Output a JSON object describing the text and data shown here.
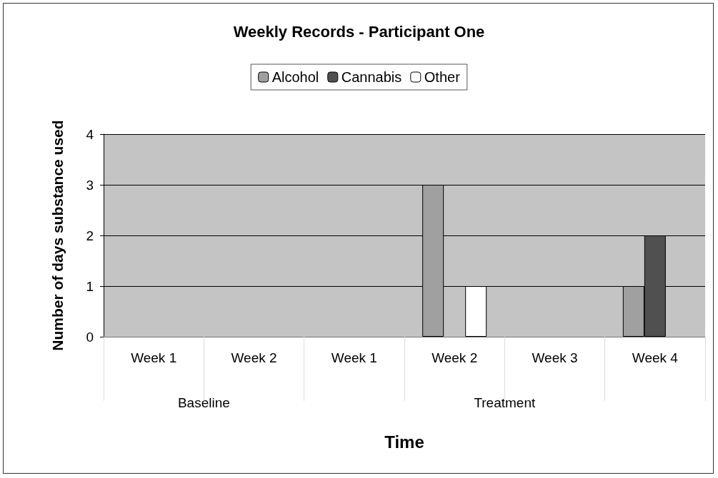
{
  "chart_data": {
    "type": "bar",
    "title": "Weekly Records - Participant One",
    "categories": [
      "Week 1",
      "Week 2",
      "Week 1",
      "Week 2",
      "Week 3",
      "Week 4"
    ],
    "series": [
      {
        "name": "Alcohol",
        "color": "#a0a0a0",
        "values": [
          0,
          0,
          0,
          3,
          0,
          1
        ]
      },
      {
        "name": "Cannabis",
        "color": "#505050",
        "values": [
          0,
          0,
          0,
          0,
          0,
          2
        ]
      },
      {
        "name": "Other",
        "color": "#ffffff",
        "values": [
          0,
          0,
          0,
          1,
          0,
          0
        ]
      }
    ],
    "xlabel": "Time",
    "ylabel": "Number of days substance used",
    "annotations": [
      "Baseline",
      "Treatment"
    ],
    "ylim": [
      0,
      4
    ],
    "yticks": [
      0,
      1,
      2,
      3,
      4
    ],
    "grid": "y",
    "legend": "top"
  }
}
